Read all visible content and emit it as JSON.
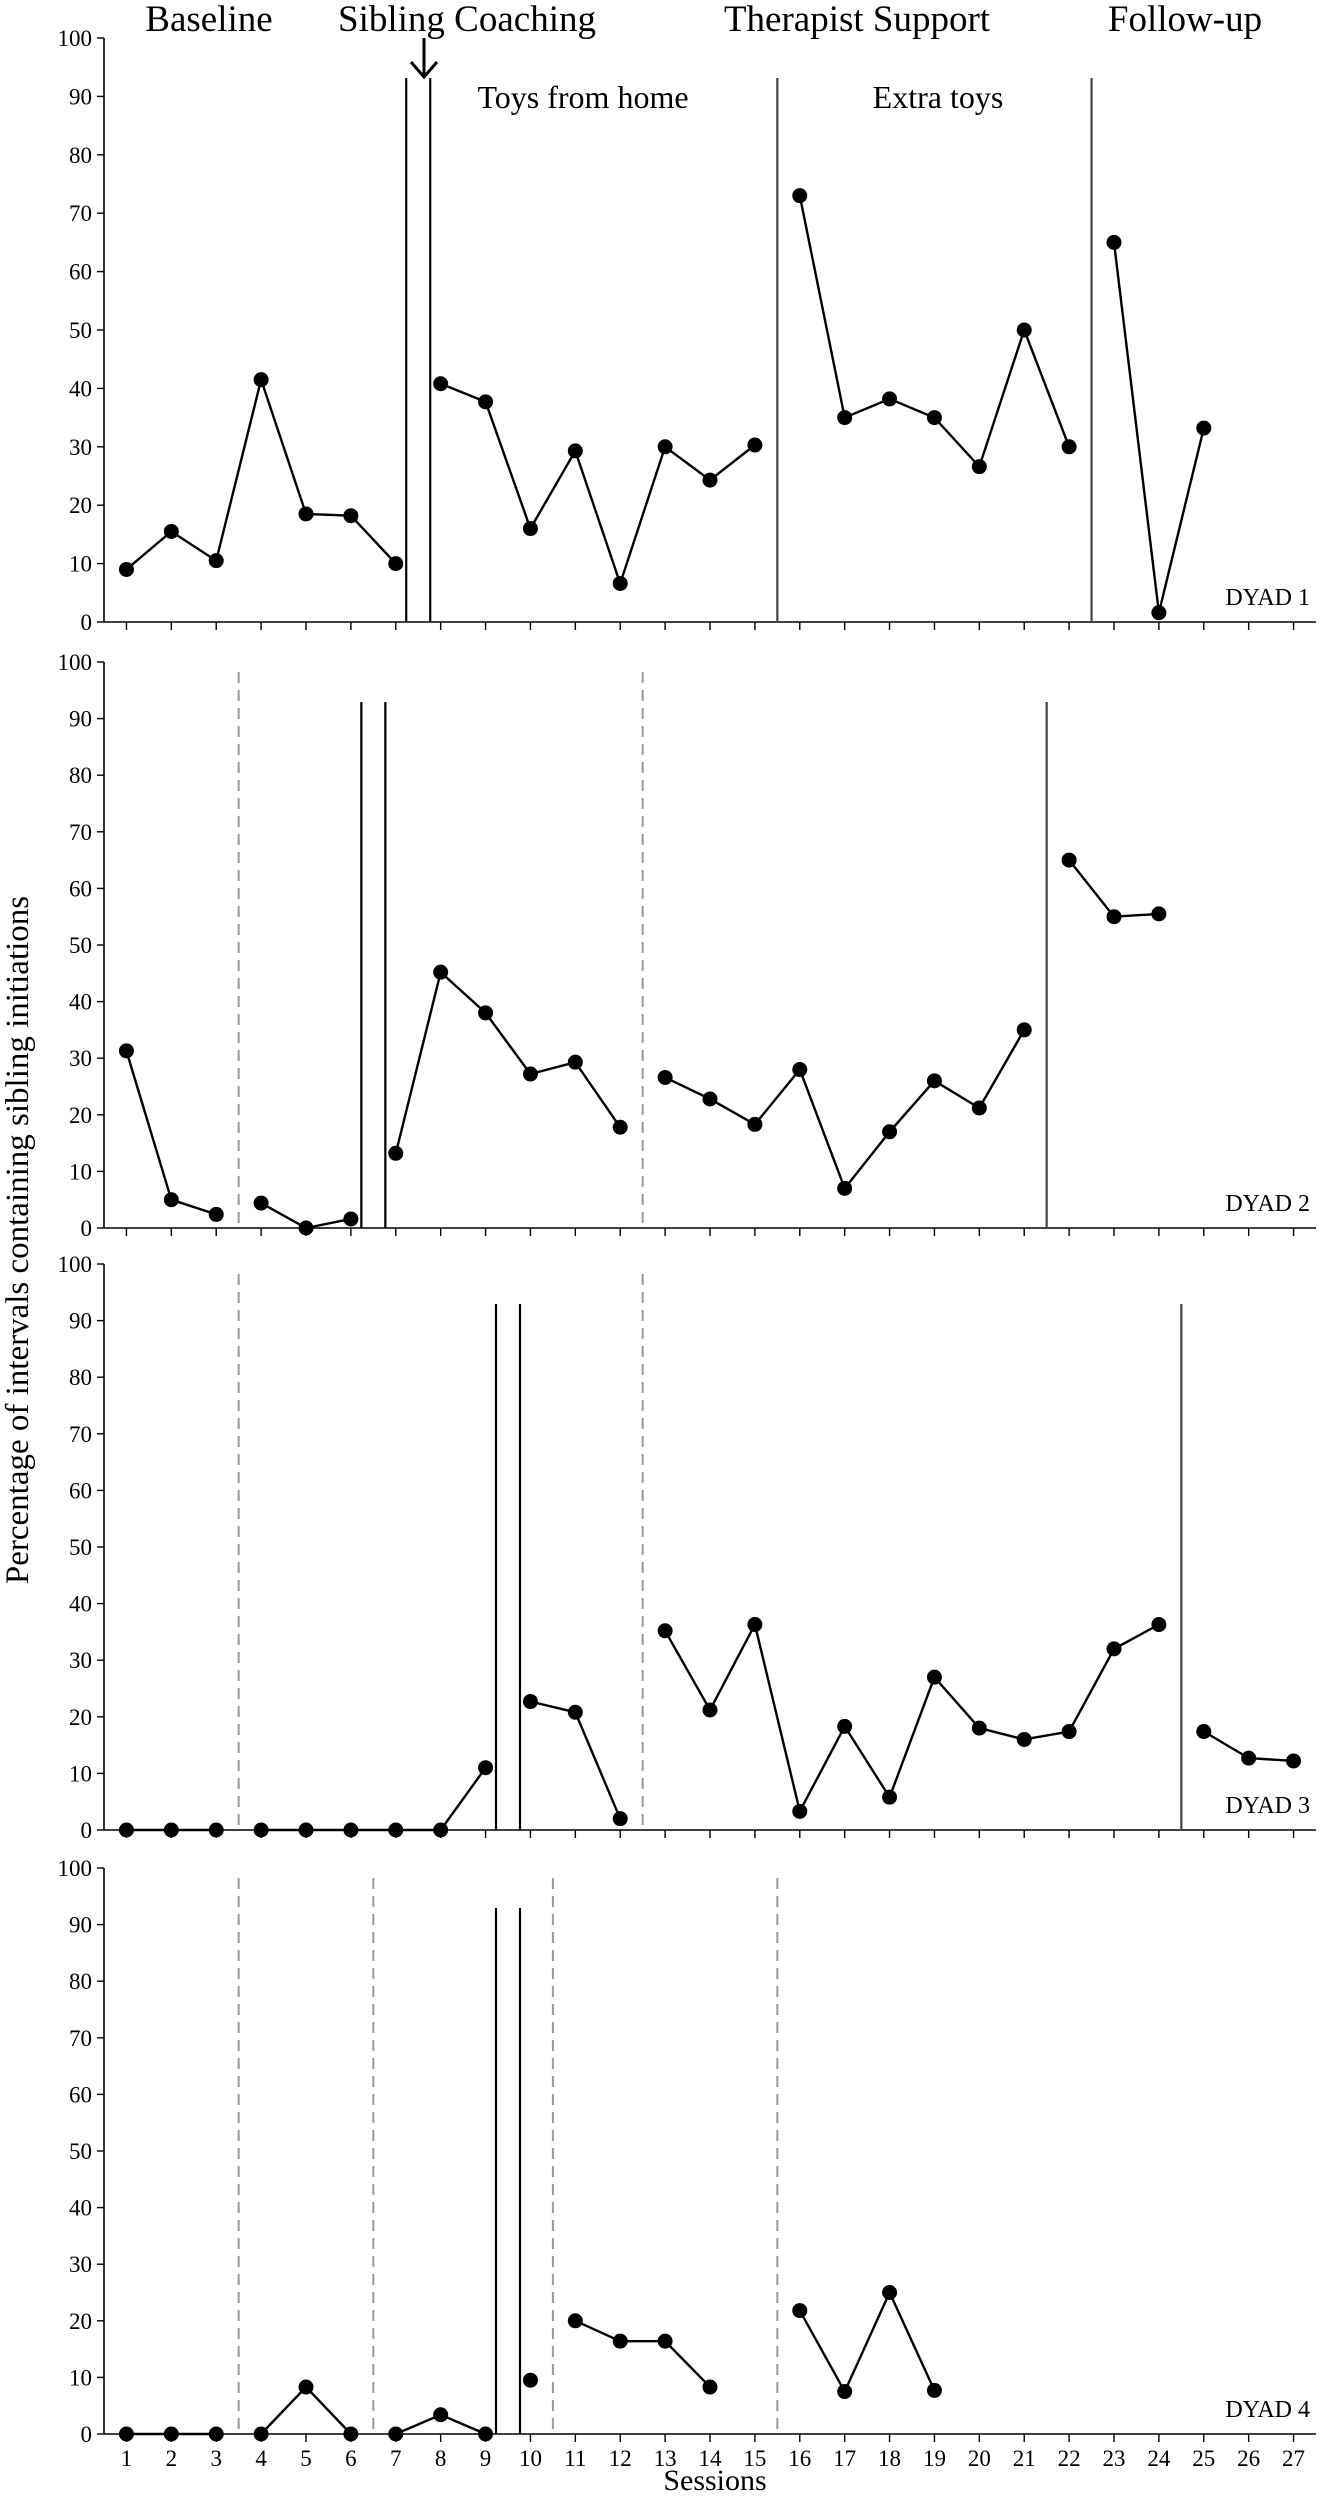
{
  "chart_data": {
    "type": "line",
    "ylabel": "Percentage of intervals containing sibling initiations",
    "xlabel": "Sessions",
    "x_ticks": [
      1,
      2,
      3,
      4,
      5,
      6,
      7,
      8,
      9,
      10,
      11,
      12,
      13,
      14,
      15,
      16,
      17,
      18,
      19,
      20,
      21,
      22,
      23,
      24,
      25,
      26,
      27
    ],
    "ylim": [
      0,
      100
    ],
    "y_ticks": [
      0,
      10,
      20,
      30,
      40,
      50,
      60,
      70,
      80,
      90,
      100
    ],
    "xlim": [
      0.5,
      27.5
    ],
    "grid": false,
    "phase_labels": [
      "Baseline",
      "Sibling Coaching",
      "Therapist Support",
      "Follow-up"
    ],
    "annotations": [
      "Toys from home",
      "Extra toys"
    ],
    "panels": [
      {
        "name": "DYAD 1",
        "double_lines": [
          7.5
        ],
        "solid_lines": [
          15.5,
          22.5
        ],
        "dashed_lines": [],
        "segments": [
          [
            [
              1,
              9
            ],
            [
              2,
              15.5
            ],
            [
              3,
              10.5
            ],
            [
              4,
              41.5
            ],
            [
              5,
              18.5
            ],
            [
              6,
              18.2
            ],
            [
              7,
              10
            ]
          ],
          [
            [
              8,
              40.8
            ],
            [
              9,
              37.7
            ],
            [
              10,
              16
            ],
            [
              11,
              29.3
            ],
            [
              12,
              6.6
            ],
            [
              13,
              30
            ],
            [
              14,
              24.3
            ],
            [
              15,
              30.3
            ]
          ],
          [
            [
              16,
              73
            ],
            [
              17,
              35
            ],
            [
              18,
              38.2
            ],
            [
              19,
              35
            ],
            [
              20,
              26.6
            ],
            [
              21,
              50
            ],
            [
              22,
              30
            ]
          ],
          [
            [
              23,
              65
            ],
            [
              24,
              1.6
            ],
            [
              25,
              33.2
            ]
          ]
        ]
      },
      {
        "name": "DYAD 2",
        "double_lines": [
          6.5
        ],
        "solid_lines": [
          21.5
        ],
        "dashed_lines": [
          3.5,
          12.5
        ],
        "segments": [
          [
            [
              1,
              31.3
            ],
            [
              2,
              5
            ],
            [
              3,
              2.4
            ]
          ],
          [
            [
              4,
              4.4
            ],
            [
              5,
              0
            ],
            [
              6,
              1.6
            ]
          ],
          [
            [
              7,
              13.2
            ],
            [
              8,
              45.2
            ],
            [
              9,
              38
            ],
            [
              10,
              27.2
            ],
            [
              11,
              29.3
            ],
            [
              12,
              17.8
            ]
          ],
          [
            [
              13,
              26.6
            ],
            [
              14,
              22.8
            ],
            [
              15,
              18.3
            ],
            [
              16,
              28
            ],
            [
              17,
              7
            ],
            [
              18,
              17
            ],
            [
              19,
              26
            ],
            [
              20,
              21.2
            ],
            [
              21,
              35
            ]
          ],
          [
            [
              22,
              65
            ],
            [
              23,
              55
            ],
            [
              24,
              55.5
            ]
          ]
        ]
      },
      {
        "name": "DYAD 3",
        "double_lines": [
          9.5
        ],
        "solid_lines": [
          24.5
        ],
        "dashed_lines": [
          3.5,
          12.5
        ],
        "segments": [
          [
            [
              1,
              0
            ],
            [
              2,
              0
            ],
            [
              3,
              0
            ]
          ],
          [
            [
              4,
              0
            ],
            [
              5,
              0
            ],
            [
              6,
              0
            ],
            [
              7,
              0
            ],
            [
              8,
              0
            ],
            [
              9,
              11
            ]
          ],
          [
            [
              10,
              22.7
            ],
            [
              11,
              20.8
            ],
            [
              12,
              2
            ]
          ],
          [
            [
              13,
              35.2
            ],
            [
              14,
              21.2
            ],
            [
              15,
              36.3
            ],
            [
              16,
              3.3
            ],
            [
              17,
              18.3
            ],
            [
              18,
              5.8
            ],
            [
              19,
              27
            ],
            [
              20,
              18
            ],
            [
              21,
              16
            ],
            [
              22,
              17.4
            ],
            [
              23,
              32
            ],
            [
              24,
              36.3
            ]
          ],
          [
            [
              25,
              17.4
            ],
            [
              26,
              12.7
            ],
            [
              27,
              12.2
            ]
          ]
        ]
      },
      {
        "name": "DYAD 4",
        "double_lines": [
          9.5
        ],
        "solid_lines": [],
        "dashed_lines": [
          3.5,
          6.5,
          10.5,
          15.5
        ],
        "segments": [
          [
            [
              1,
              0
            ],
            [
              2,
              0
            ],
            [
              3,
              0
            ]
          ],
          [
            [
              4,
              0
            ],
            [
              5,
              8.3
            ],
            [
              6,
              0
            ]
          ],
          [
            [
              7,
              0
            ],
            [
              8,
              3.4
            ],
            [
              9,
              0
            ]
          ],
          [
            [
              10,
              9.5
            ]
          ],
          [
            [
              11,
              20
            ],
            [
              12,
              16.4
            ],
            [
              13,
              16.4
            ],
            [
              14,
              8.3
            ]
          ],
          [
            [
              16,
              21.8
            ],
            [
              17,
              7.5
            ],
            [
              18,
              25
            ],
            [
              19,
              7.7
            ]
          ]
        ]
      }
    ]
  }
}
